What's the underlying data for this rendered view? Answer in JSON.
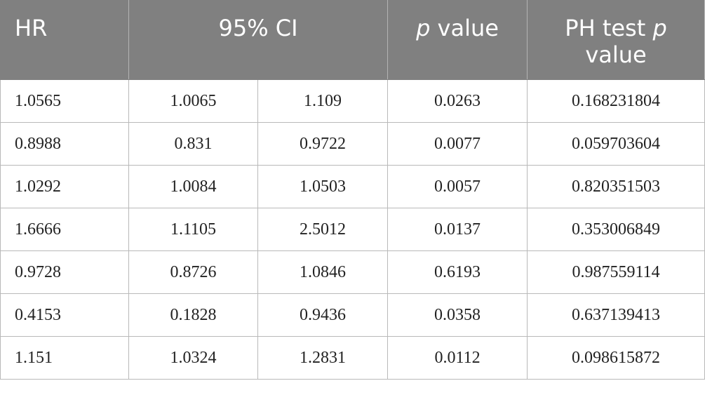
{
  "header": {
    "hr": "HR",
    "ci": "95% CI",
    "p_italic": "p",
    "p_rest": " value",
    "ph_prefix": "PH test ",
    "ph_italic": "p",
    "ph_suffix": "value"
  },
  "rows": [
    {
      "hr": "1.0565",
      "ci_low": "1.0065",
      "ci_high": "1.109",
      "p": "0.0263",
      "ph": "0.168231804"
    },
    {
      "hr": "0.8988",
      "ci_low": "0.831",
      "ci_high": "0.9722",
      "p": "0.0077",
      "ph": "0.059703604"
    },
    {
      "hr": "1.0292",
      "ci_low": "1.0084",
      "ci_high": "1.0503",
      "p": "0.0057",
      "ph": "0.820351503"
    },
    {
      "hr": "1.6666",
      "ci_low": "1.1105",
      "ci_high": "2.5012",
      "p": "0.0137",
      "ph": "0.353006849"
    },
    {
      "hr": "0.9728",
      "ci_low": "0.8726",
      "ci_high": "1.0846",
      "p": "0.6193",
      "ph": "0.987559114"
    },
    {
      "hr": "0.4153",
      "ci_low": "0.1828",
      "ci_high": "0.9436",
      "p": "0.0358",
      "ph": "0.637139413"
    },
    {
      "hr": "1.151",
      "ci_low": "1.0324",
      "ci_high": "1.2831",
      "p": "0.0112",
      "ph": "0.098615872"
    }
  ],
  "colors": {
    "header_bg": "#808080",
    "header_text": "#ffffff",
    "grid": "#b9b9b9",
    "cell_text": "#222222"
  }
}
